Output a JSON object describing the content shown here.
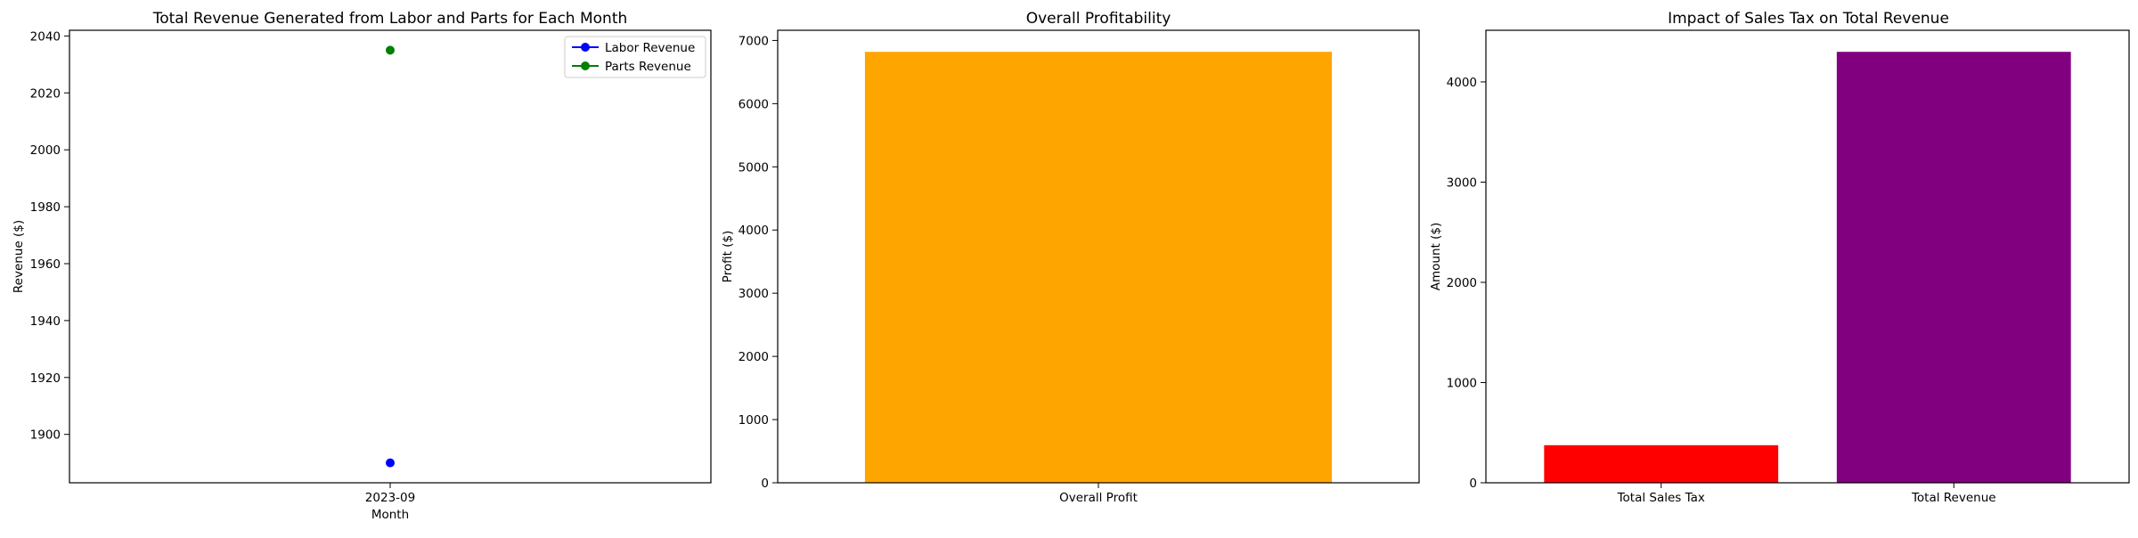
{
  "chart_data": [
    {
      "type": "line",
      "title": "Total Revenue Generated from Labor and Parts for Each Month",
      "xlabel": "Month",
      "ylabel": "Revenue ($)",
      "categories": [
        "2023-09"
      ],
      "series": [
        {
          "name": "Labor Revenue",
          "color": "#0000ff",
          "values": [
            1890
          ]
        },
        {
          "name": "Parts Revenue",
          "color": "#008000",
          "values": [
            2035
          ]
        }
      ],
      "ylim": [
        1883,
        2042
      ],
      "yticks": [
        1900,
        1920,
        1940,
        1960,
        1980,
        2000,
        2020,
        2040
      ],
      "legend": "top-right",
      "grid": false
    },
    {
      "type": "bar",
      "title": "Overall Profitability",
      "xlabel": "",
      "ylabel": "Profit ($)",
      "categories": [
        "Overall Profit"
      ],
      "values": [
        6820
      ],
      "colors": [
        "#ffa500"
      ],
      "ylim": [
        0,
        7161
      ],
      "yticks": [
        0,
        1000,
        2000,
        3000,
        4000,
        5000,
        6000,
        7000
      ],
      "grid": false
    },
    {
      "type": "bar",
      "title": "Impact of Sales Tax on Total Revenue",
      "xlabel": "",
      "ylabel": "Amount ($)",
      "categories": [
        "Total Sales Tax",
        "Total Revenue"
      ],
      "values": [
        375,
        4300
      ],
      "colors": [
        "#ff0000",
        "#800080"
      ],
      "ylim": [
        0,
        4515
      ],
      "yticks": [
        0,
        1000,
        2000,
        3000,
        4000
      ],
      "grid": false
    }
  ]
}
